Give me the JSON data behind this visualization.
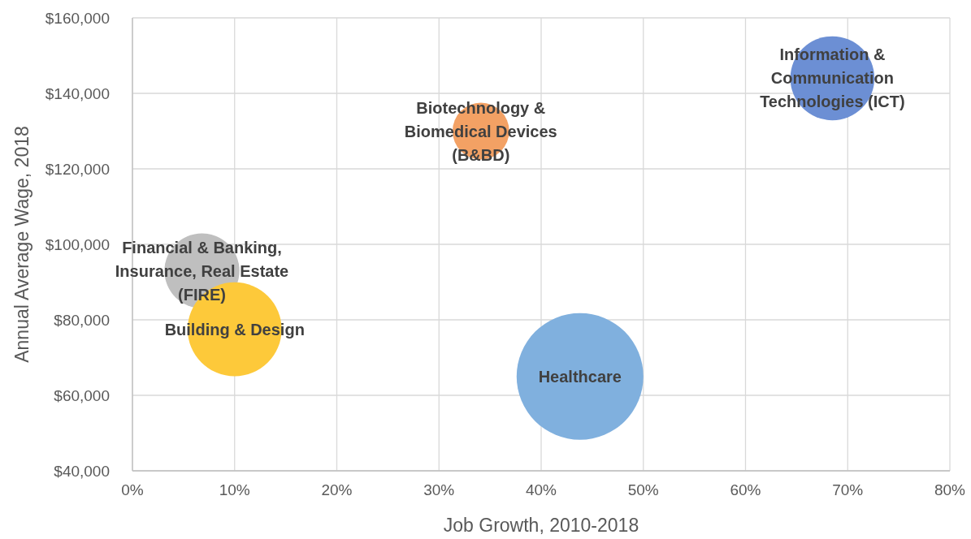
{
  "chart_data": {
    "type": "bubble",
    "xlabel": "Job Growth, 2010-2018",
    "ylabel": "Annual Average Wage, 2018",
    "series": [
      {
        "name": "Financial & Banking, Insurance, Real Estate (FIRE)",
        "color": "#bfbfbf",
        "x": [
          6.8
        ],
        "values": [
          93000
        ],
        "sizes": [
          0.35
        ]
      },
      {
        "name": "Building & Design",
        "color": "#fdc93a",
        "x": [
          10
        ],
        "values": [
          77500
        ],
        "sizes": [
          0.55
        ]
      },
      {
        "name": "Biotechnology & Biomedical Devices (B&BD)",
        "color": "#f3a164",
        "x": [
          34.1
        ],
        "values": [
          130000
        ],
        "sizes": [
          0.2
        ]
      },
      {
        "name": "Healthcare",
        "color": "#80b0de",
        "x": [
          43.8
        ],
        "values": [
          65000
        ],
        "sizes": [
          1
        ]
      },
      {
        "name": "Information & Communication Technologies (ICT)",
        "color": "#6c8fd4",
        "x": [
          68.5
        ],
        "values": [
          144000
        ],
        "sizes": [
          0.44
        ]
      }
    ],
    "xlim": [
      0,
      80
    ],
    "xticks": [
      {
        "value": 0,
        "label": "0%"
      },
      {
        "value": 10,
        "label": "10%"
      },
      {
        "value": 20,
        "label": "20%"
      },
      {
        "value": 30,
        "label": "30%"
      },
      {
        "value": 40,
        "label": "40%"
      },
      {
        "value": 50,
        "label": "50%"
      },
      {
        "value": 60,
        "label": "60%"
      },
      {
        "value": 70,
        "label": "70%"
      },
      {
        "value": 80,
        "label": "80%"
      }
    ],
    "ylim": [
      40000,
      160000
    ],
    "yticks": [
      {
        "value": 40000,
        "label": "$40,000"
      },
      {
        "value": 60000,
        "label": "$60,000"
      },
      {
        "value": 80000,
        "label": "$80,000"
      },
      {
        "value": 100000,
        "label": "$100,000"
      },
      {
        "value": 120000,
        "label": "$120,000"
      },
      {
        "value": 140000,
        "label": "$140,000"
      },
      {
        "value": 160000,
        "label": "$160,000"
      }
    ],
    "grid": true
  }
}
